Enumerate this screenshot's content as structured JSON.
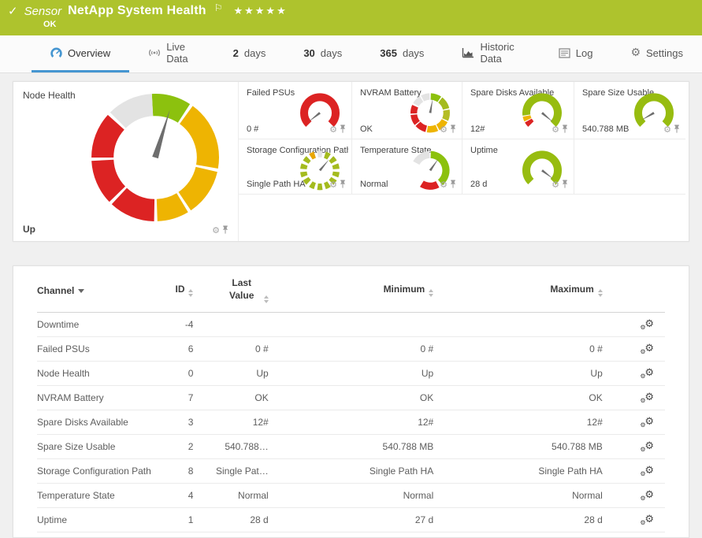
{
  "header": {
    "check_icon": "✓",
    "kind": "Sensor",
    "title": "NetApp System Health",
    "flag_icon": "⚐",
    "stars": "★★★★★",
    "status": "OK"
  },
  "tabs": [
    {
      "label": "Overview",
      "icon": "gauge-icon",
      "active": true
    },
    {
      "label": "Live Data",
      "icon": "live-icon"
    },
    {
      "num": "2",
      "label": "days"
    },
    {
      "num": "30",
      "label": "days"
    },
    {
      "num": "365",
      "label": "days"
    },
    {
      "label": "Historic Data",
      "icon": "chart-icon"
    },
    {
      "label": "Log",
      "icon": "log-icon"
    },
    {
      "label": "Settings",
      "icon": "settings-gear-icon"
    }
  ],
  "gauges": {
    "node_health": {
      "title": "Node Health",
      "value": "Up"
    },
    "tiles": [
      {
        "title": "Failed PSUs",
        "value": "0 #"
      },
      {
        "title": "NVRAM Battery",
        "value": "OK"
      },
      {
        "title": "Spare Disks Available",
        "value": "12#"
      },
      {
        "title": "Spare Size Usable",
        "value": "540.788 MB"
      },
      {
        "title": "Storage Configuration Path",
        "value": "Single Path HA"
      },
      {
        "title": "Temperature State",
        "value": "Normal"
      },
      {
        "title": "Uptime",
        "value": "28 d"
      }
    ]
  },
  "table": {
    "headers": {
      "channel": "Channel",
      "id": "ID",
      "last": "Last Value",
      "min": "Minimum",
      "max": "Maximum"
    },
    "rows": [
      {
        "channel": "Downtime",
        "id": "-4",
        "last": "",
        "min": "",
        "max": ""
      },
      {
        "channel": "Failed PSUs",
        "id": "6",
        "last": "0 #",
        "min": "0 #",
        "max": "0 #"
      },
      {
        "channel": "Node Health",
        "id": "0",
        "last": "Up",
        "min": "Up",
        "max": "Up"
      },
      {
        "channel": "NVRAM Battery",
        "id": "7",
        "last": "OK",
        "min": "OK",
        "max": "OK"
      },
      {
        "channel": "Spare Disks Available",
        "id": "3",
        "last": "12#",
        "min": "12#",
        "max": "12#"
      },
      {
        "channel": "Spare Size Usable",
        "id": "2",
        "last": "540.788…",
        "min": "540.788 MB",
        "max": "540.788 MB"
      },
      {
        "channel": "Storage Configuration Path",
        "id": "8",
        "last": "Single Pat…",
        "min": "Single Path HA",
        "max": "Single Path HA"
      },
      {
        "channel": "Temperature State",
        "id": "4",
        "last": "Normal",
        "min": "Normal",
        "max": "Normal"
      },
      {
        "channel": "Uptime",
        "id": "1",
        "last": "28 d",
        "min": "27 d",
        "max": "28 d"
      }
    ]
  },
  "colors": {
    "status_ok_green": "#aec32d",
    "gauge_green": "#97bc10",
    "gauge_bright_green": "#8cc10e",
    "gauge_yellow": "#eeb402",
    "gauge_red": "#dc2323",
    "gauge_gray": "#e3e3e3",
    "needle_gray": "#6e6e6e",
    "active_tab_blue": "#4596d1"
  }
}
